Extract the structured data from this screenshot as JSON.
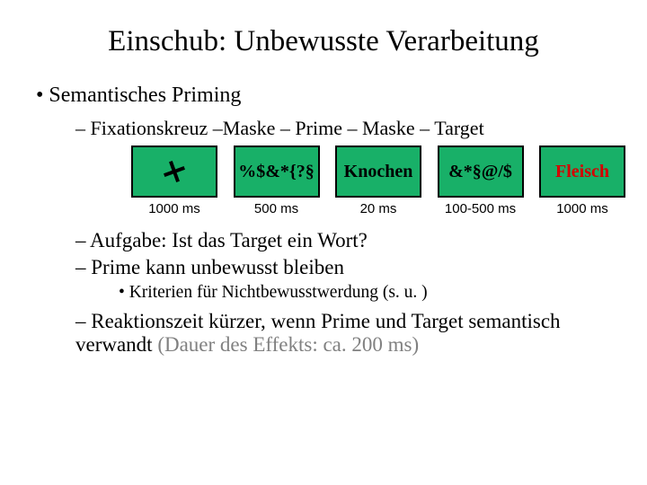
{
  "title": "Einschub: Unbewusste Verarbeitung",
  "b1": "Semantisches Priming",
  "seqline_prefix": "    ",
  "seqline": "Fixationskreuz –Maske – Prime – Maske – Target",
  "boxes": {
    "bg_color": "#18b068",
    "border_color": "#000000",
    "items": [
      {
        "kind": "cross",
        "label": "",
        "time": "1000 ms",
        "text_color": "#000000"
      },
      {
        "kind": "text",
        "label": "%$&*{?§",
        "time": "500 ms",
        "text_color": "#000000"
      },
      {
        "kind": "text",
        "label": "Knochen",
        "time": "20 ms",
        "text_color": "#000000"
      },
      {
        "kind": "text",
        "label": "&*§@/$",
        "time": "100-500 ms",
        "text_color": "#000000"
      },
      {
        "kind": "text",
        "label": "Fleisch",
        "time": "1000 ms",
        "text_color": "#d40000"
      }
    ]
  },
  "b2a": "Aufgabe: Ist das Target ein Wort?",
  "b2b": "Prime kann unbewusst bleiben",
  "b3": "Kriterien für Nichtbewusstwerdung (s. u. )",
  "b2c_black": "Reaktionszeit kürzer, wenn Prime und Target semantisch verwandt ",
  "b2c_gray": "(Dauer des Effekts: ca. 200 ms)"
}
